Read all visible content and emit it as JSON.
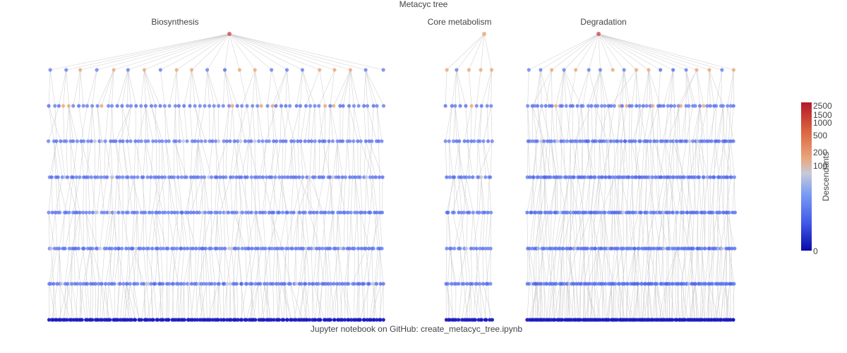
{
  "chart_data": {
    "type": "tree",
    "title": "Metacyc tree",
    "panels": [
      {
        "name": "Biosynthesis",
        "root_descendants": 2500,
        "levels": 9
      },
      {
        "name": "Core metabolism",
        "root_descendants": 180,
        "levels": 9
      },
      {
        "name": "Degradation",
        "root_descendants": 1600,
        "levels": 9
      }
    ],
    "footer": "Jupyter notebook on GitHub:  create_metacyc_tree.ipynb",
    "colorbar": {
      "title": "Descendants",
      "ticks": [
        "0",
        "100",
        "200",
        "500",
        "1000",
        "1500",
        "2500"
      ],
      "colorscale": [
        "#0a0aa8",
        "#3f57e6",
        "#7a9bf5",
        "#c7c9d8",
        "#e8a77e",
        "#dc6640",
        "#b41a2a"
      ]
    },
    "edge_color": "#c9c9c9",
    "node_colors": {
      "leaf": "#1c1cc0",
      "mid": "#5b75ee",
      "high": "#e8a070",
      "root": "#d0404a"
    }
  }
}
